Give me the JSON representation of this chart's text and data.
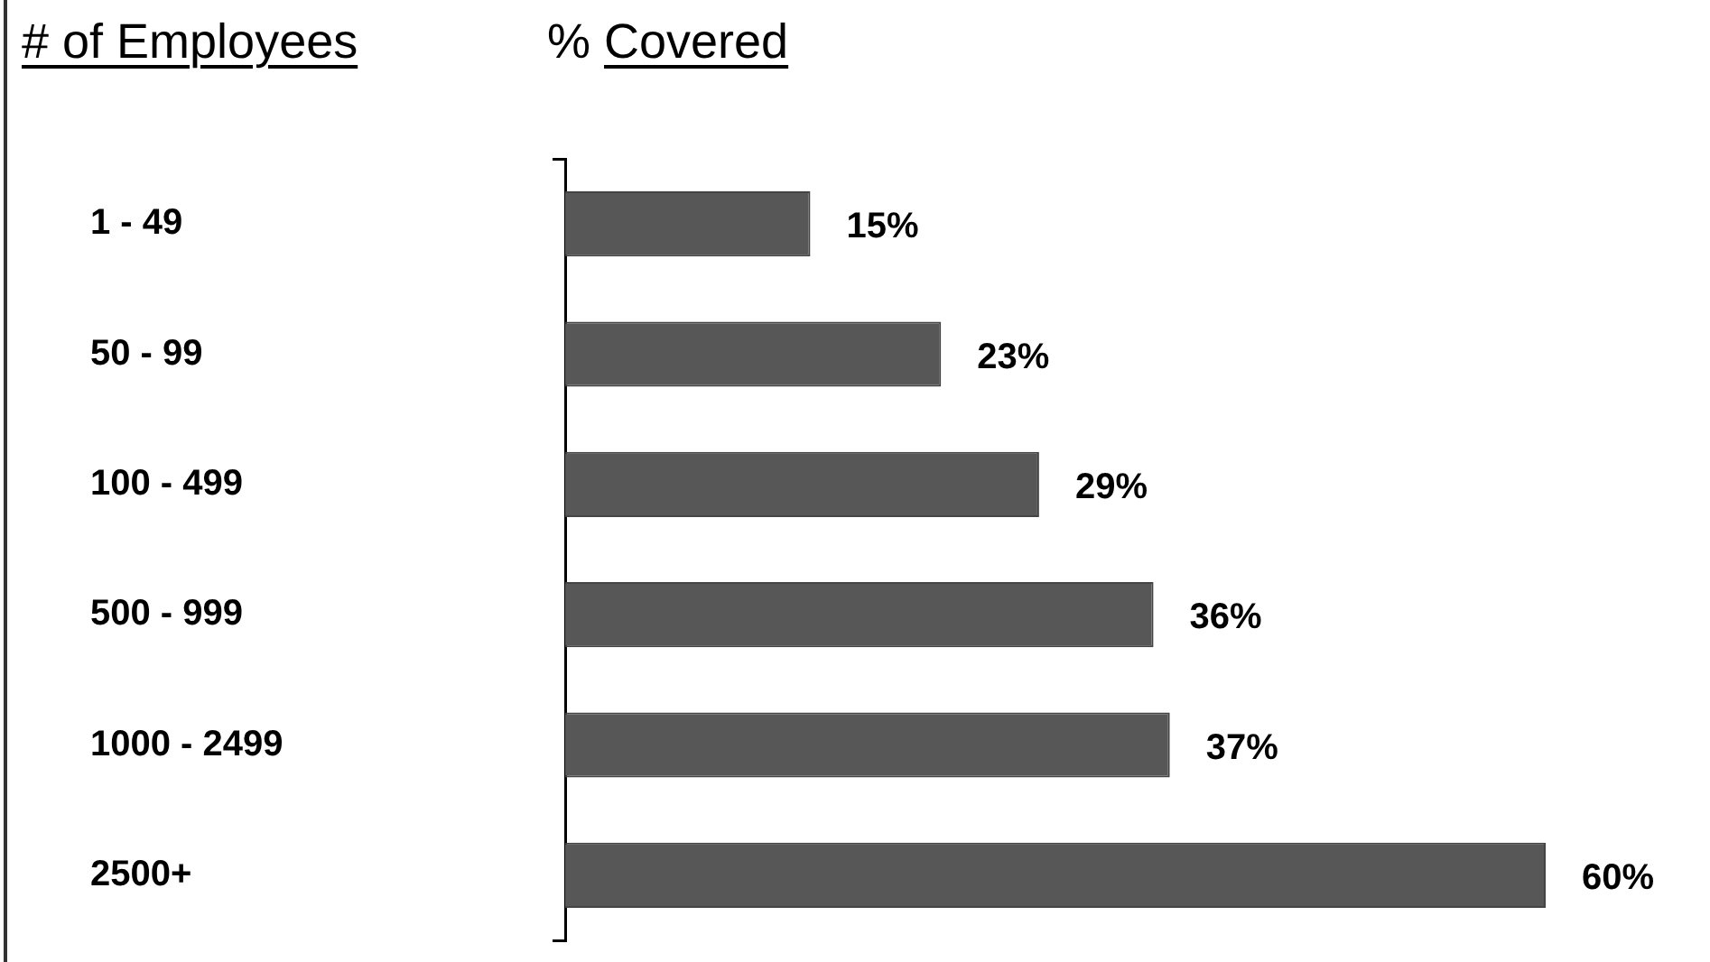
{
  "chart_data": {
    "type": "bar",
    "orientation": "horizontal",
    "xlabel": "% Covered",
    "ylabel": "# of Employees",
    "categories": [
      "1 - 49",
      "50 - 99",
      "100 - 499",
      "500 - 999",
      "1000 - 2499",
      "2500+"
    ],
    "values": [
      15,
      23,
      29,
      36,
      37,
      60
    ],
    "value_labels": [
      "15%",
      "23%",
      "29%",
      "36%",
      "37%",
      "60%"
    ],
    "color": "#575757",
    "tick_labels": "y"
  }
}
